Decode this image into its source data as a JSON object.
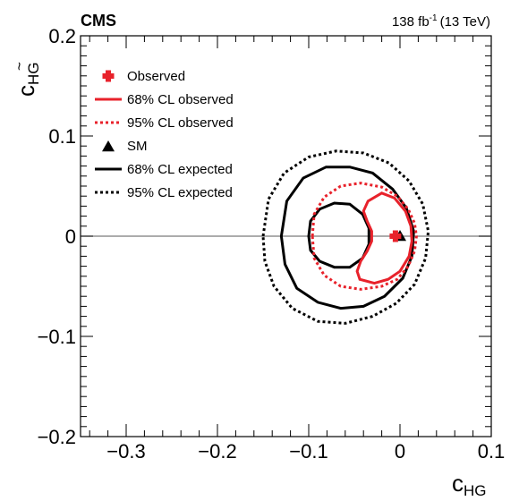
{
  "chart_data": {
    "type": "contour",
    "experiment": "CMS",
    "lumi": {
      "value": "138 fb",
      "sup": "-1",
      "energy": "(13 TeV)"
    },
    "xlabel": {
      "main": "c",
      "sub": "HG"
    },
    "ylabel": {
      "main": "c",
      "sub": "HG",
      "tilde": "~"
    },
    "xlim": [
      -0.35,
      0.1
    ],
    "ylim": [
      -0.2,
      0.2
    ],
    "x_ticks": [
      {
        "value": -0.3,
        "label": "−0.3"
      },
      {
        "value": -0.2,
        "label": "−0.2"
      },
      {
        "value": -0.1,
        "label": "−0.1"
      },
      {
        "value": 0.0,
        "label": "0"
      },
      {
        "value": 0.1,
        "label": "0.1"
      }
    ],
    "y_ticks": [
      {
        "value": -0.2,
        "label": "−0.2"
      },
      {
        "value": -0.1,
        "label": "−0.1"
      },
      {
        "value": 0.0,
        "label": "0"
      },
      {
        "value": 0.1,
        "label": "0.1"
      },
      {
        "value": 0.2,
        "label": "0.2"
      }
    ],
    "reference_line": {
      "y": 0.0,
      "color": "#7a7a7a"
    },
    "colors": {
      "observed": "#e8222b",
      "expected": "#000000"
    },
    "legend": [
      {
        "key": "observed_point",
        "label": "Observed"
      },
      {
        "key": "obs68",
        "label": "68% CL observed"
      },
      {
        "key": "obs95",
        "label": "95% CL observed"
      },
      {
        "key": "sm",
        "label": "SM"
      },
      {
        "key": "exp68",
        "label": "68% CL expected"
      },
      {
        "key": "exp95",
        "label": "95% CL expected"
      }
    ],
    "points": {
      "observed": {
        "x": -0.005,
        "y": 0.0
      },
      "sm": {
        "x": 0.0,
        "y": 0.0
      }
    },
    "contours": {
      "exp68_inner": [
        [
          -0.1,
          0.0
        ],
        [
          -0.098,
          0.015
        ],
        [
          -0.088,
          0.027
        ],
        [
          -0.072,
          0.033
        ],
        [
          -0.055,
          0.032
        ],
        [
          -0.041,
          0.022
        ],
        [
          -0.034,
          0.008
        ],
        [
          -0.034,
          -0.008
        ],
        [
          -0.041,
          -0.022
        ],
        [
          -0.055,
          -0.031
        ],
        [
          -0.072,
          -0.031
        ],
        [
          -0.088,
          -0.025
        ],
        [
          -0.098,
          -0.014
        ]
      ],
      "exp68_outer": [
        [
          -0.13,
          0.0
        ],
        [
          -0.124,
          0.035
        ],
        [
          -0.106,
          0.058
        ],
        [
          -0.081,
          0.069
        ],
        [
          -0.055,
          0.069
        ],
        [
          -0.03,
          0.063
        ],
        [
          -0.008,
          0.047
        ],
        [
          0.007,
          0.028
        ],
        [
          0.015,
          0.005
        ],
        [
          0.013,
          -0.02
        ],
        [
          0.003,
          -0.042
        ],
        [
          -0.017,
          -0.06
        ],
        [
          -0.04,
          -0.07
        ],
        [
          -0.065,
          -0.072
        ],
        [
          -0.09,
          -0.066
        ],
        [
          -0.113,
          -0.052
        ],
        [
          -0.126,
          -0.028
        ]
      ],
      "exp95": [
        [
          -0.15,
          0.0
        ],
        [
          -0.144,
          0.037
        ],
        [
          -0.127,
          0.063
        ],
        [
          -0.1,
          0.079
        ],
        [
          -0.07,
          0.085
        ],
        [
          -0.04,
          0.083
        ],
        [
          -0.012,
          0.073
        ],
        [
          0.01,
          0.055
        ],
        [
          0.025,
          0.032
        ],
        [
          0.031,
          0.005
        ],
        [
          0.028,
          -0.022
        ],
        [
          0.016,
          -0.048
        ],
        [
          -0.004,
          -0.067
        ],
        [
          -0.03,
          -0.08
        ],
        [
          -0.06,
          -0.087
        ],
        [
          -0.09,
          -0.085
        ],
        [
          -0.118,
          -0.072
        ],
        [
          -0.138,
          -0.05
        ],
        [
          -0.148,
          -0.025
        ]
      ],
      "obs68": [
        [
          -0.035,
          0.035
        ],
        [
          -0.04,
          0.025
        ],
        [
          -0.036,
          0.015
        ],
        [
          -0.031,
          0.005
        ],
        [
          -0.031,
          -0.005
        ],
        [
          -0.036,
          -0.015
        ],
        [
          -0.043,
          -0.025
        ],
        [
          -0.047,
          -0.035
        ],
        [
          -0.044,
          -0.043
        ],
        [
          -0.028,
          -0.047
        ],
        [
          -0.013,
          -0.043
        ],
        [
          0.0,
          -0.035
        ],
        [
          0.01,
          -0.02
        ],
        [
          0.013,
          -0.005
        ],
        [
          0.012,
          0.01
        ],
        [
          0.006,
          0.025
        ],
        [
          -0.006,
          0.038
        ],
        [
          -0.02,
          0.043
        ]
      ],
      "obs95": [
        [
          -0.096,
          0.0
        ],
        [
          -0.094,
          0.022
        ],
        [
          -0.083,
          0.039
        ],
        [
          -0.065,
          0.05
        ],
        [
          -0.043,
          0.053
        ],
        [
          -0.02,
          0.049
        ],
        [
          -0.003,
          0.04
        ],
        [
          0.009,
          0.027
        ],
        [
          0.016,
          0.013
        ],
        [
          0.018,
          0.0
        ],
        [
          0.016,
          -0.015
        ],
        [
          0.009,
          -0.03
        ],
        [
          -0.003,
          -0.043
        ],
        [
          -0.02,
          -0.05
        ],
        [
          -0.043,
          -0.053
        ],
        [
          -0.065,
          -0.05
        ],
        [
          -0.083,
          -0.039
        ],
        [
          -0.094,
          -0.022
        ]
      ]
    }
  }
}
